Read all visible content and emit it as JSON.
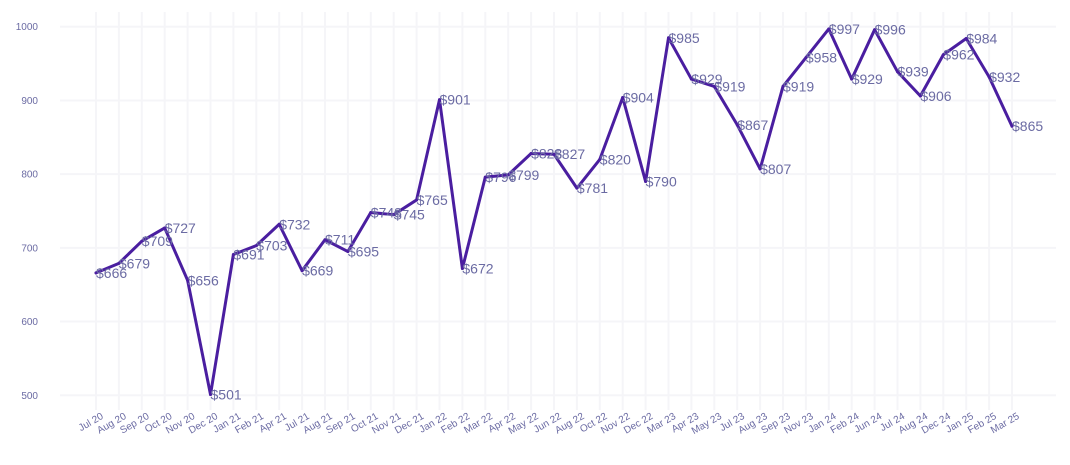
{
  "colors": {
    "line": "#4a1ea0",
    "label": "#6b6ba3",
    "grid": "#f5f5f8"
  },
  "chart_data": {
    "type": "line",
    "title": "",
    "xlabel": "",
    "ylabel": "",
    "ylim": [
      480,
      1020
    ],
    "yticks": [
      500,
      600,
      700,
      800,
      900,
      1000
    ],
    "grid": true,
    "legend": "none",
    "label_prefix": "$",
    "categories": [
      "Jul 20",
      "Aug 20",
      "Sep 20",
      "Oct 20",
      "Nov 20",
      "Dec 20",
      "Jan 21",
      "Feb 21",
      "Apr 21",
      "Jul 21",
      "Aug 21",
      "Sep 21",
      "Oct 21",
      "Nov 21",
      "Dec 21",
      "Jan 22",
      "Feb 22",
      "Mar 22",
      "Apr 22",
      "May 22",
      "Jun 22",
      "Aug 22",
      "Oct 22",
      "Nov 22",
      "Dec 22",
      "Mar 23",
      "Apr 23",
      "May 23",
      "Jul 23",
      "Aug 23",
      "Sep 23",
      "Nov 23",
      "Jan 24",
      "Feb 24",
      "Jun 24",
      "Jul 24",
      "Aug 24",
      "Dec 24",
      "Jan 25",
      "Feb 25",
      "Mar 25"
    ],
    "series": [
      {
        "values": [
          666,
          679,
          709,
          727,
          656,
          501,
          691,
          703,
          732,
          669,
          711,
          695,
          748,
          745,
          765,
          901,
          672,
          796,
          799,
          828,
          827,
          781,
          820,
          904,
          790,
          985,
          929,
          919,
          867,
          807,
          919,
          958,
          997,
          929,
          996,
          939,
          906,
          962,
          984,
          932,
          865
        ]
      }
    ]
  }
}
